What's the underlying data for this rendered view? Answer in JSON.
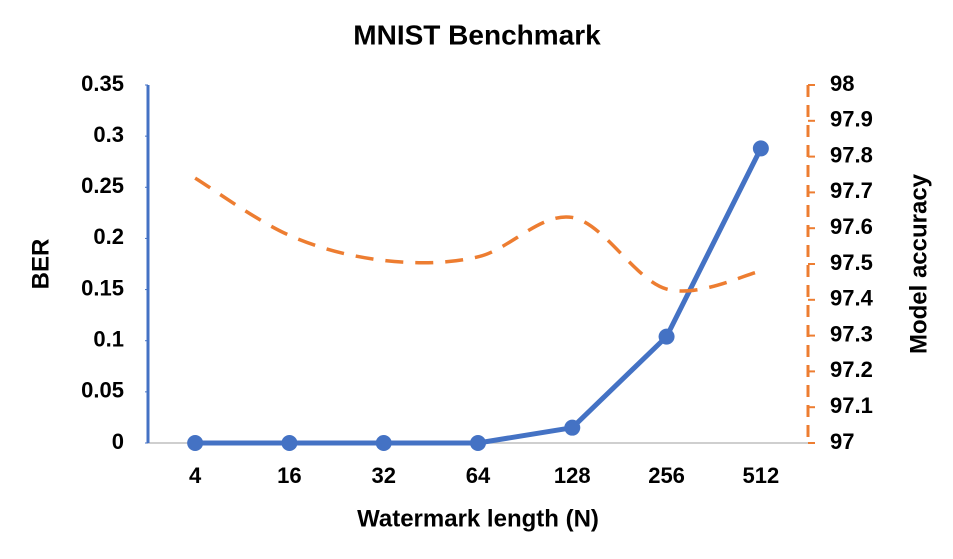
{
  "chart_data": {
    "type": "line",
    "title": "MNIST Benchmark",
    "x_label": "Watermark length (N)",
    "y_label": "BER",
    "y2_label": "Model accuracy",
    "categories": [
      "4",
      "16",
      "32",
      "64",
      "128",
      "256",
      "512"
    ],
    "series": [
      {
        "color": "#4472c4",
        "values": [
          0,
          0,
          0,
          0,
          0.015,
          0.104,
          0.288
        ]
      },
      {
        "color": "#ed7d31",
        "axis": "y2",
        "dashed": true,
        "values": [
          97.74,
          97.58,
          97.51,
          97.52,
          97.63,
          97.43,
          97.48
        ]
      }
    ],
    "ylim": [
      0,
      0.35
    ],
    "yticks": [
      0,
      0.05,
      0.1,
      0.15,
      0.2,
      0.25,
      0.3,
      0.35
    ],
    "y2lim": [
      97,
      98
    ],
    "y2ticks": [
      97,
      97.1,
      97.2,
      97.3,
      97.4,
      97.5,
      97.6,
      97.7,
      97.8,
      97.9,
      98
    ]
  }
}
